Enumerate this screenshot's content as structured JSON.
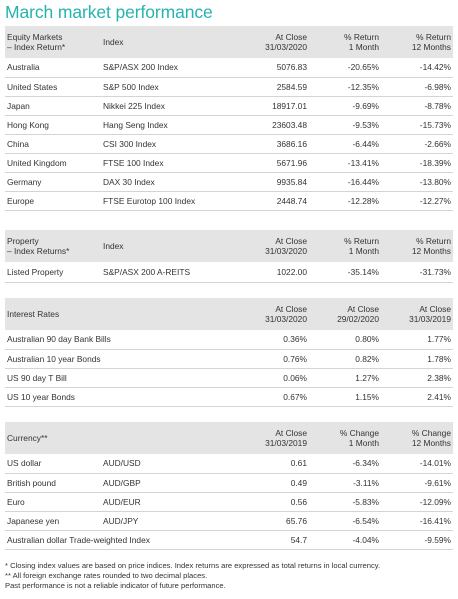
{
  "title": "March market performance",
  "equity": {
    "h": [
      "Equity Markets",
      "– Index Return*",
      "Index",
      "At Close",
      "31/03/2020",
      "% Return",
      "1 Month",
      "% Return",
      "12 Months"
    ],
    "rows": [
      [
        "Australia",
        "S&P/ASX 200 Index",
        "5076.83",
        "-20.65%",
        "-14.42%"
      ],
      [
        "United States",
        "S&P 500 Index",
        "2584.59",
        "-12.35%",
        "-6.98%"
      ],
      [
        "Japan",
        "Nikkei 225 Index",
        "18917.01",
        "-9.69%",
        "-8.78%"
      ],
      [
        "Hong Kong",
        "Hang Seng Index",
        "23603.48",
        "-9.53%",
        "-15.73%"
      ],
      [
        "China",
        "CSI 300 Index",
        "3686.16",
        "-6.44%",
        "-2.66%"
      ],
      [
        "United Kingdom",
        "FTSE 100 Index",
        "5671.96",
        "-13.41%",
        "-18.39%"
      ],
      [
        "Germany",
        "DAX 30 Index",
        "9935.84",
        "-16.44%",
        "-13.80%"
      ],
      [
        "Europe",
        "FTSE Eurotop 100 Index",
        "2448.74",
        "-12.28%",
        "-12.27%"
      ]
    ]
  },
  "property": {
    "h": [
      "Property",
      "– Index Returns*",
      "Index",
      "At Close",
      "31/03/2020",
      "% Return",
      "1 Month",
      "% Return",
      "12 Months"
    ],
    "rows": [
      [
        "Listed Property",
        "S&P/ASX 200 A-REITS",
        "1022.00",
        "-35.14%",
        "-31.73%"
      ]
    ]
  },
  "interest": {
    "h": [
      "Interest Rates",
      "At Close",
      "31/03/2020",
      "At Close",
      "29/02/2020",
      "At Close",
      "31/03/2019"
    ],
    "rows": [
      [
        "Australian 90 day Bank Bills",
        "0.36%",
        "0.80%",
        "1.77%"
      ],
      [
        "Australian 10 year Bonds",
        "0.76%",
        "0.82%",
        "1.78%"
      ],
      [
        "US 90 day T Bill",
        "0.06%",
        "1.27%",
        "2.38%"
      ],
      [
        "US 10 year Bonds",
        "0.67%",
        "1.15%",
        "2.41%"
      ]
    ]
  },
  "currency": {
    "h": [
      "Currency**",
      "At Close",
      "31/03/2019",
      "% Change",
      "1 Month",
      "% Change",
      "12 Months"
    ],
    "rows": [
      [
        "US dollar",
        "AUD/USD",
        "0.61",
        "-6.34%",
        "-14.01%"
      ],
      [
        "British pound",
        "AUD/GBP",
        "0.49",
        "-3.11%",
        "-9.61%"
      ],
      [
        "Euro",
        "AUD/EUR",
        "0.56",
        "-5.83%",
        "-12.09%"
      ],
      [
        "Japanese yen",
        "AUD/JPY",
        "65.76",
        "-6.54%",
        "-16.41%"
      ],
      [
        "Australian dollar Trade-weighted Index",
        "",
        "54.7",
        "-4.04%",
        "-9.59%"
      ]
    ]
  },
  "footnotes": [
    "* Closing index values are based on price indices. Index returns are expressed as total returns in local currency.",
    "** All foreign exchange rates rounded to two decimal places.",
    "Past performance is not a reliable indicator of future performance."
  ]
}
